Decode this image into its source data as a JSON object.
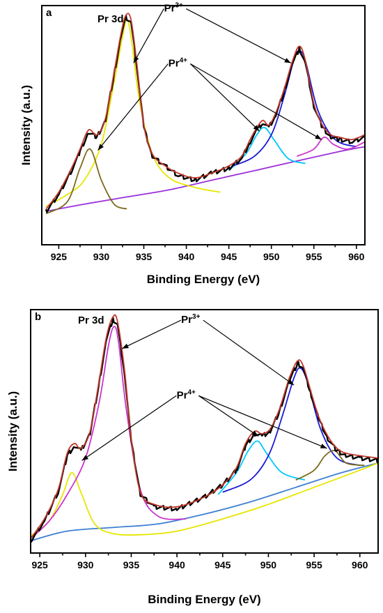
{
  "chart_data": [
    {
      "type": "line",
      "panel": "a",
      "title": "Pr 3d",
      "xlabel": "Binding Energy (eV)",
      "ylabel": "Intensity (a.u.)",
      "xlim": [
        923,
        961
      ],
      "ylim": [
        0,
        1
      ],
      "xticks": [
        925,
        930,
        935,
        940,
        945,
        950,
        955,
        960
      ],
      "grid": false,
      "legend": "none",
      "annotations": [
        {
          "base": "Pr",
          "sup": "3+",
          "x": 938.5,
          "y": 0.975,
          "targets": [
            [
              933.8,
              0.76
            ],
            [
              952.3,
              0.76
            ]
          ]
        },
        {
          "base": "Pr",
          "sup": "4+",
          "x": 939.0,
          "y": 0.745,
          "targets": [
            [
              929.6,
              0.395
            ],
            [
              948.6,
              0.475
            ],
            [
              955.9,
              0.44
            ]
          ]
        }
      ],
      "series": [
        {
          "role": "measured",
          "color": "#000000",
          "x": [
            923.5,
            925,
            926.5,
            927.5,
            928.5,
            929.5,
            930.5,
            931.5,
            932.3,
            932.9,
            933.5,
            934.2,
            935,
            936,
            937.5,
            939,
            941,
            943,
            945,
            946.5,
            947.5,
            948.3,
            949,
            949.7,
            950.5,
            951.5,
            952.5,
            953.3,
            954,
            955,
            956,
            957,
            958,
            959.5,
            961
          ],
          "y": [
            0.14,
            0.21,
            0.31,
            0.39,
            0.47,
            0.45,
            0.52,
            0.71,
            0.87,
            0.95,
            0.93,
            0.74,
            0.49,
            0.37,
            0.33,
            0.29,
            0.27,
            0.3,
            0.32,
            0.36,
            0.43,
            0.48,
            0.51,
            0.49,
            0.54,
            0.64,
            0.76,
            0.82,
            0.76,
            0.58,
            0.49,
            0.45,
            0.44,
            0.43,
            0.45
          ]
        },
        {
          "role": "envelope",
          "color": "#c0392b",
          "x": [
            923.5,
            925,
            926.5,
            927.5,
            928.5,
            929.5,
            930.5,
            931.5,
            932.3,
            932.9,
            933.5,
            934.2,
            935,
            936,
            937.5,
            939,
            941,
            943,
            945,
            946.5,
            947.5,
            948.3,
            949,
            949.7,
            950.5,
            951.5,
            952.5,
            953.3,
            954,
            955,
            956,
            957,
            958,
            959.5,
            961
          ],
          "y": [
            0.15,
            0.22,
            0.32,
            0.4,
            0.48,
            0.46,
            0.53,
            0.72,
            0.88,
            0.96,
            0.94,
            0.75,
            0.5,
            0.38,
            0.33,
            0.3,
            0.28,
            0.3,
            0.33,
            0.37,
            0.44,
            0.49,
            0.52,
            0.5,
            0.55,
            0.65,
            0.77,
            0.83,
            0.77,
            0.59,
            0.5,
            0.46,
            0.45,
            0.44,
            0.46
          ]
        },
        {
          "role": "component",
          "color": "#e6e600",
          "x": [
            923.5,
            926,
            928,
            930,
            931.5,
            932.5,
            933,
            933.5,
            934.5,
            936,
            938,
            941,
            944
          ],
          "y": [
            0.16,
            0.21,
            0.27,
            0.42,
            0.68,
            0.87,
            0.94,
            0.87,
            0.6,
            0.38,
            0.28,
            0.24,
            0.22
          ]
        },
        {
          "role": "component",
          "color": "#7a6a1a",
          "x": [
            923.5,
            926,
            927.5,
            928.7,
            930,
            931.5,
            933
          ],
          "y": [
            0.13,
            0.18,
            0.32,
            0.4,
            0.27,
            0.17,
            0.15
          ]
        },
        {
          "role": "component",
          "color": "#00c8ff",
          "x": [
            945,
            947,
            948.3,
            949.2,
            950.3,
            952,
            954
          ],
          "y": [
            0.31,
            0.38,
            0.46,
            0.49,
            0.44,
            0.36,
            0.34
          ]
        },
        {
          "role": "component",
          "color": "#1a1ad6",
          "x": [
            945.5,
            948,
            950,
            951.5,
            952.7,
            953.3,
            954,
            955.5,
            957.5,
            960
          ],
          "y": [
            0.33,
            0.37,
            0.46,
            0.62,
            0.78,
            0.81,
            0.77,
            0.56,
            0.44,
            0.41
          ]
        },
        {
          "role": "component",
          "color": "#cc33cc",
          "x": [
            953,
            955,
            956.2,
            957.3,
            959,
            961
          ],
          "y": [
            0.37,
            0.4,
            0.45,
            0.42,
            0.4,
            0.43
          ]
        },
        {
          "role": "background",
          "color": "#9b30d9",
          "x": [
            923.5,
            928,
            933,
            938,
            943,
            948,
            953,
            958,
            961
          ],
          "y": [
            0.14,
            0.17,
            0.2,
            0.23,
            0.27,
            0.31,
            0.35,
            0.39,
            0.41
          ]
        }
      ]
    },
    {
      "type": "line",
      "panel": "b",
      "title": "Pr 3d",
      "xlabel": "Binding Energy (eV)",
      "ylabel": "Intensity (a.u.)",
      "xlim": [
        924,
        962
      ],
      "ylim": [
        0,
        1
      ],
      "xticks": [
        925,
        930,
        935,
        940,
        945,
        950,
        955,
        960
      ],
      "grid": false,
      "legend": "none",
      "annotations": [
        {
          "base": "Pr",
          "sup": "3+",
          "x": 941.5,
          "y": 0.945,
          "targets": [
            [
              934.0,
              0.84
            ],
            [
              952.8,
              0.69
            ]
          ]
        },
        {
          "base": "Pr",
          "sup": "4+",
          "x": 941.0,
          "y": 0.635,
          "targets": [
            [
              929.6,
              0.38
            ],
            [
              948.9,
              0.48
            ],
            [
              956.4,
              0.43
            ]
          ]
        }
      ],
      "series": [
        {
          "role": "measured",
          "color": "#000000",
          "x": [
            924,
            925.5,
            927,
            928,
            928.8,
            929.5,
            930.5,
            931.5,
            932.3,
            933,
            933.5,
            934.3,
            935,
            936,
            937.5,
            940,
            943,
            945,
            946.5,
            947.5,
            948.5,
            949.3,
            950.2,
            951.2,
            952.3,
            953.2,
            953.8,
            954.6,
            955.5,
            956.5,
            957.5,
            958.5,
            960,
            962
          ],
          "y": [
            0.05,
            0.13,
            0.25,
            0.4,
            0.44,
            0.42,
            0.49,
            0.7,
            0.88,
            0.96,
            0.94,
            0.73,
            0.46,
            0.24,
            0.19,
            0.18,
            0.23,
            0.28,
            0.34,
            0.44,
            0.49,
            0.48,
            0.5,
            0.58,
            0.71,
            0.78,
            0.76,
            0.66,
            0.55,
            0.47,
            0.42,
            0.4,
            0.39,
            0.38
          ]
        },
        {
          "role": "envelope",
          "color": "#c0392b",
          "x": [
            924,
            925.5,
            927,
            928,
            928.8,
            929.5,
            930.5,
            931.5,
            932.3,
            933,
            933.5,
            934.3,
            935,
            936,
            937.5,
            940,
            943,
            945,
            946.5,
            947.5,
            948.5,
            949.3,
            950.2,
            951.2,
            952.3,
            953.2,
            953.8,
            954.6,
            955.5,
            956.5,
            957.5,
            958.5,
            960,
            962
          ],
          "y": [
            0.06,
            0.14,
            0.26,
            0.41,
            0.45,
            0.43,
            0.5,
            0.71,
            0.89,
            0.97,
            0.95,
            0.74,
            0.47,
            0.25,
            0.2,
            0.19,
            0.23,
            0.28,
            0.35,
            0.45,
            0.5,
            0.49,
            0.51,
            0.59,
            0.72,
            0.79,
            0.77,
            0.67,
            0.56,
            0.48,
            0.43,
            0.41,
            0.4,
            0.39
          ]
        },
        {
          "role": "component",
          "color": "#e6e600",
          "x": [
            924,
            926,
            927.5,
            928.5,
            929.5,
            931,
            933,
            936,
            940,
            945,
            950,
            955,
            960,
            962
          ],
          "y": [
            0.07,
            0.13,
            0.24,
            0.33,
            0.25,
            0.12,
            0.08,
            0.075,
            0.09,
            0.14,
            0.2,
            0.27,
            0.34,
            0.37
          ]
        },
        {
          "role": "component",
          "color": "#cc33cc",
          "x": [
            924,
            926,
            928,
            930,
            931.5,
            932.5,
            933.1,
            933.6,
            934.5,
            936,
            938,
            941
          ],
          "y": [
            0.06,
            0.13,
            0.24,
            0.39,
            0.62,
            0.85,
            0.93,
            0.87,
            0.58,
            0.26,
            0.15,
            0.14
          ]
        },
        {
          "role": "component",
          "color": "#00c8ff",
          "x": [
            944.5,
            946.5,
            947.8,
            948.8,
            949.8,
            951.5,
            954
          ],
          "y": [
            0.24,
            0.33,
            0.42,
            0.46,
            0.41,
            0.33,
            0.3
          ]
        },
        {
          "role": "component",
          "color": "#1a1ad6",
          "x": [
            945,
            948,
            950,
            951.5,
            952.8,
            953.5,
            954.3,
            955.7,
            957.5,
            960
          ],
          "y": [
            0.25,
            0.3,
            0.4,
            0.56,
            0.72,
            0.76,
            0.7,
            0.51,
            0.39,
            0.36
          ]
        },
        {
          "role": "component",
          "color": "#7a6a1a",
          "x": [
            953,
            955,
            956.2,
            957.3,
            958.5,
            960.5
          ],
          "y": [
            0.3,
            0.34,
            0.4,
            0.42,
            0.37,
            0.36
          ]
        },
        {
          "role": "background",
          "color": "#3d7fd1",
          "x": [
            924,
            928,
            933,
            938,
            943,
            948,
            953,
            958,
            962
          ],
          "y": [
            0.05,
            0.09,
            0.105,
            0.12,
            0.16,
            0.21,
            0.27,
            0.33,
            0.37
          ]
        }
      ]
    }
  ]
}
